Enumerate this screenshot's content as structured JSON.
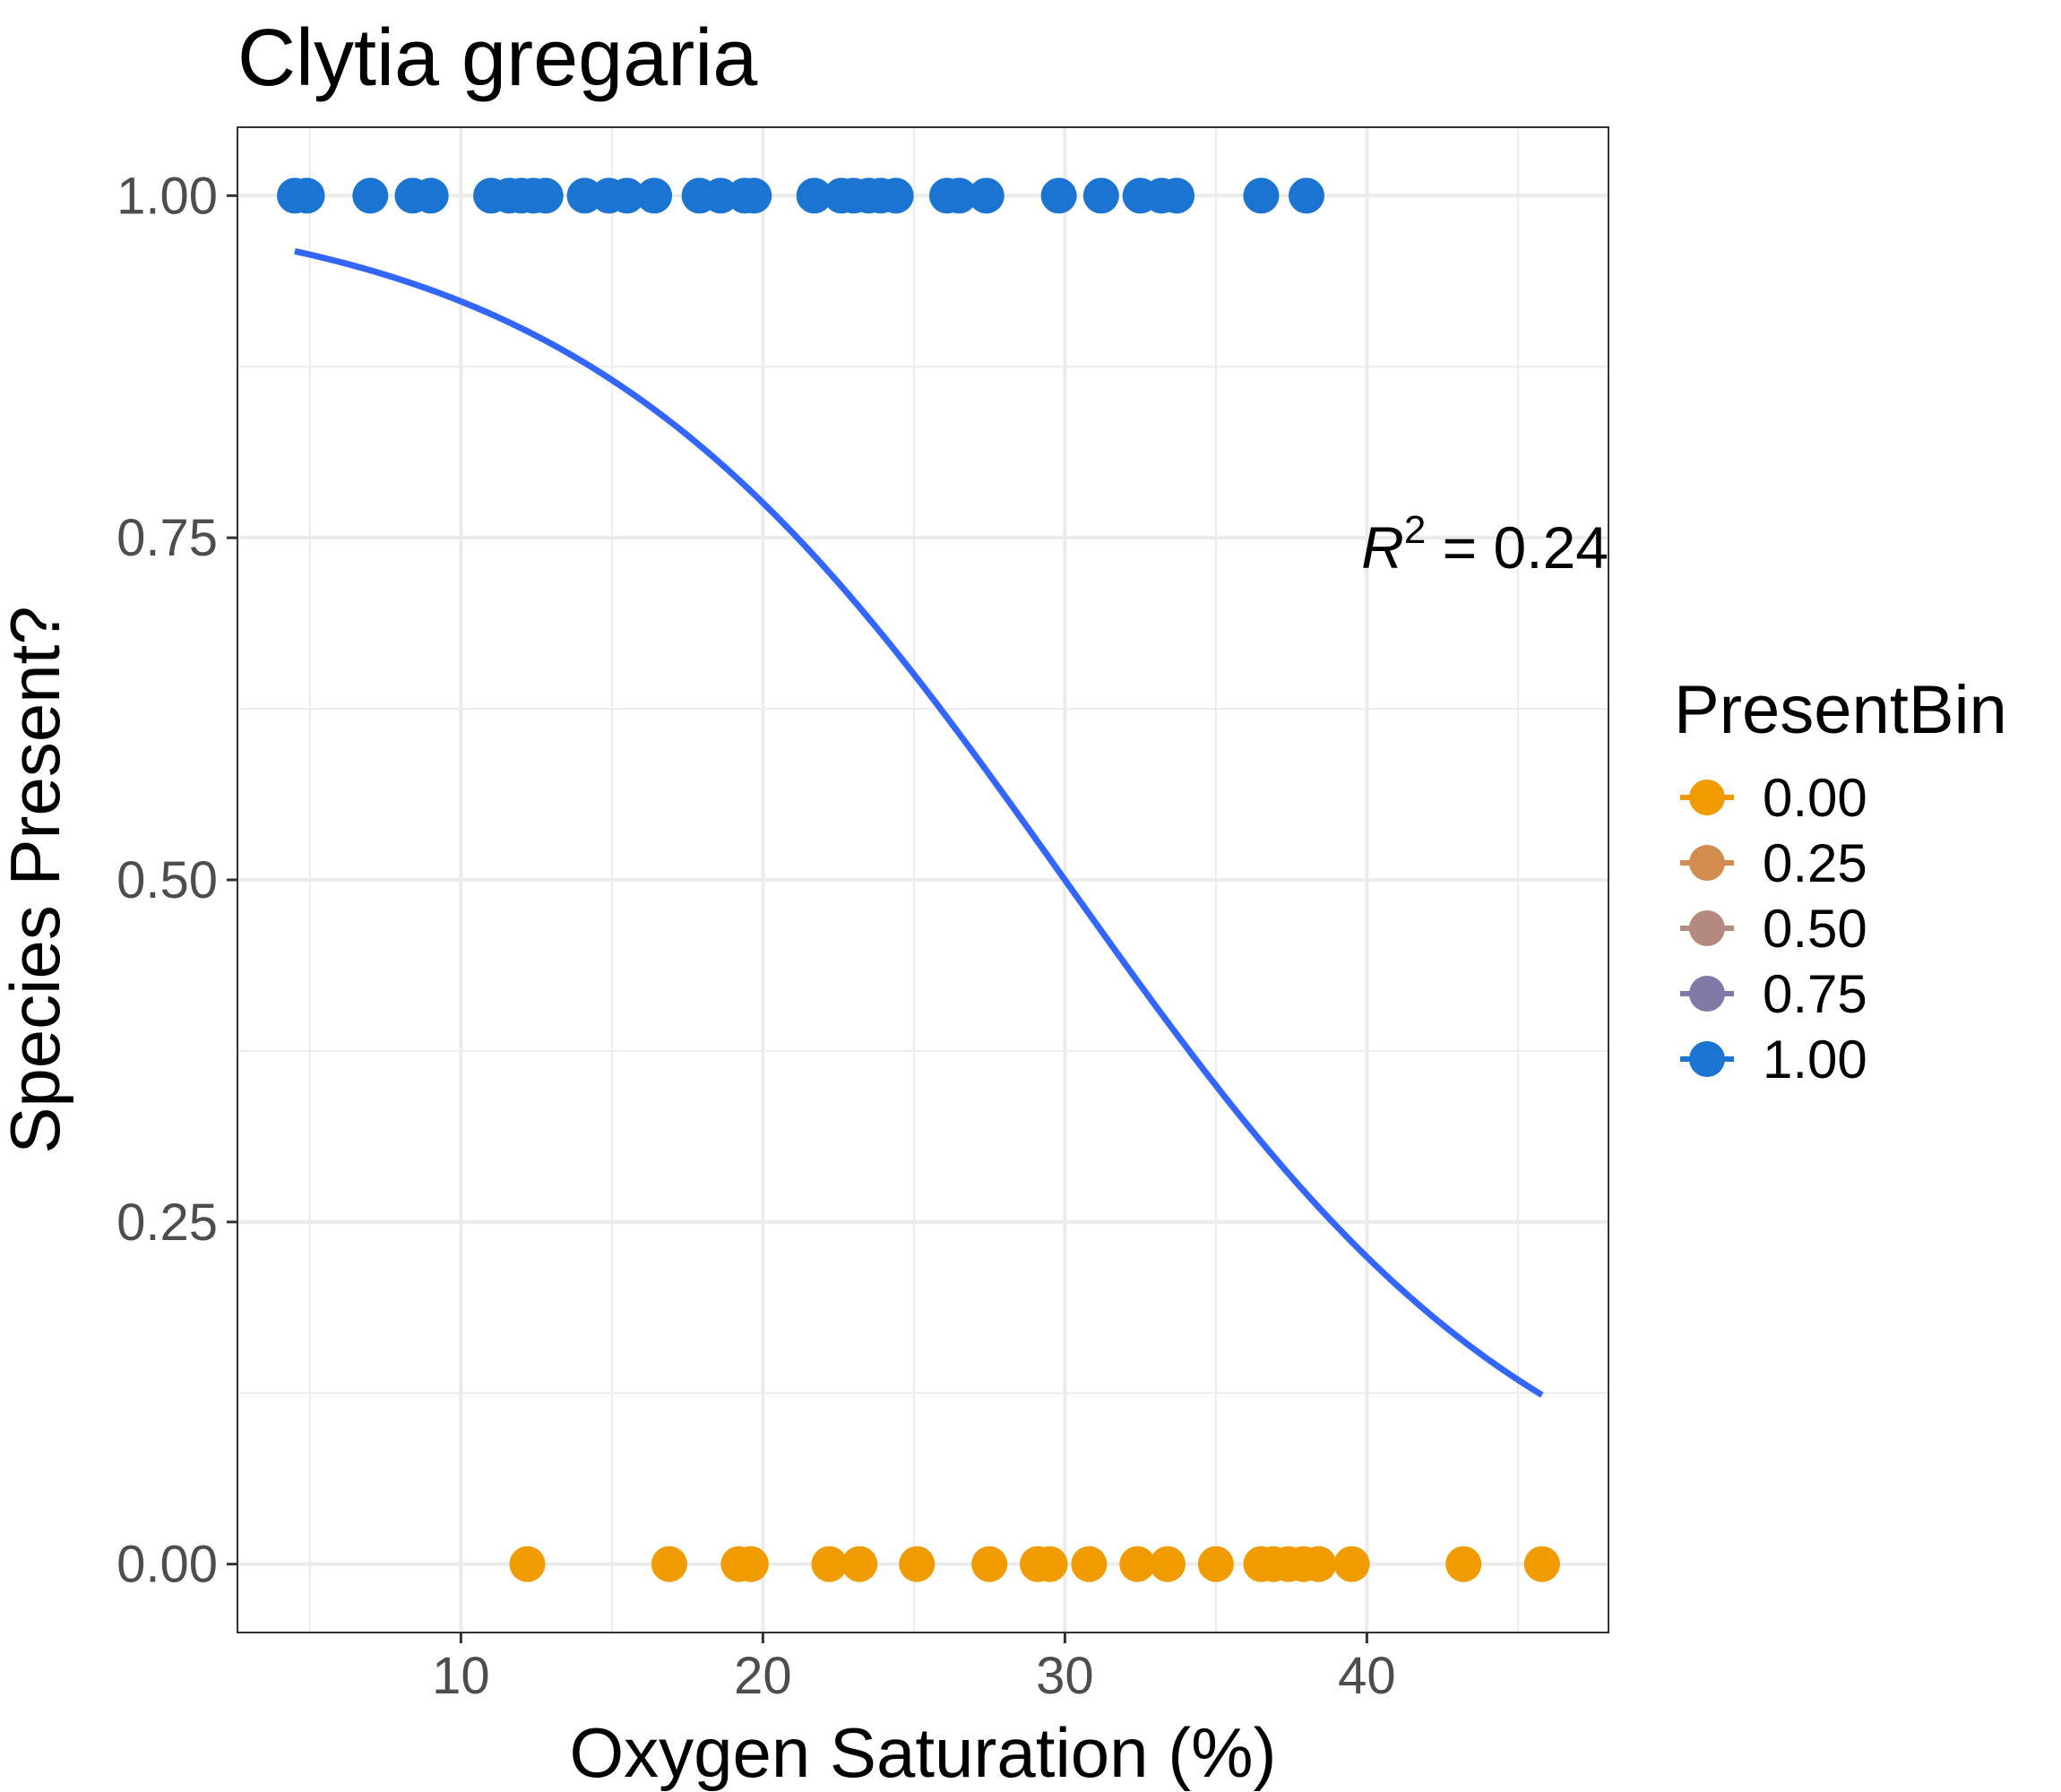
{
  "chart_data": {
    "type": "scatter",
    "title": "Clytia gregaria",
    "xlabel": "Oxygen Saturation (%)",
    "ylabel": "Species Present?",
    "xlim": [
      2.6,
      48.0
    ],
    "ylim": [
      -0.05,
      1.05
    ],
    "x_ticks": [
      10,
      20,
      30,
      40
    ],
    "x_tick_labels": [
      "10",
      "20",
      "30",
      "40"
    ],
    "y_ticks": [
      0,
      0.25,
      0.5,
      0.75,
      1.0
    ],
    "y_tick_labels": [
      "0.00",
      "0.25",
      "0.50",
      "0.75",
      "1.00"
    ],
    "grid": true,
    "legend": {
      "title": "PresentBin",
      "placement": "right",
      "entries": [
        {
          "label": "0.00",
          "color": "#F09B00"
        },
        {
          "label": "0.25",
          "color": "#D28C50"
        },
        {
          "label": "0.50",
          "color": "#B58A7E"
        },
        {
          "label": "0.75",
          "color": "#8179A8"
        },
        {
          "label": "1.00",
          "color": "#1B74D2"
        }
      ]
    },
    "annotation": {
      "symbol": "R",
      "superscript": "2",
      "text": " = 0.24"
    },
    "series": [
      {
        "presentbin": 1.0,
        "color": "#1B74D2",
        "points": [
          {
            "x": 4.5,
            "y": 1
          },
          {
            "x": 4.9,
            "y": 1
          },
          {
            "x": 7.0,
            "y": 1
          },
          {
            "x": 8.4,
            "y": 1
          },
          {
            "x": 9.0,
            "y": 1
          },
          {
            "x": 11.0,
            "y": 1
          },
          {
            "x": 11.6,
            "y": 1
          },
          {
            "x": 12.0,
            "y": 1
          },
          {
            "x": 12.4,
            "y": 1
          },
          {
            "x": 12.8,
            "y": 1
          },
          {
            "x": 14.1,
            "y": 1
          },
          {
            "x": 14.9,
            "y": 1
          },
          {
            "x": 15.5,
            "y": 1
          },
          {
            "x": 16.4,
            "y": 1
          },
          {
            "x": 17.9,
            "y": 1
          },
          {
            "x": 18.6,
            "y": 1
          },
          {
            "x": 19.4,
            "y": 1
          },
          {
            "x": 19.7,
            "y": 1
          },
          {
            "x": 21.7,
            "y": 1
          },
          {
            "x": 22.6,
            "y": 1
          },
          {
            "x": 23.0,
            "y": 1
          },
          {
            "x": 23.5,
            "y": 1
          },
          {
            "x": 23.9,
            "y": 1
          },
          {
            "x": 24.4,
            "y": 1
          },
          {
            "x": 26.1,
            "y": 1
          },
          {
            "x": 26.5,
            "y": 1
          },
          {
            "x": 27.4,
            "y": 1
          },
          {
            "x": 29.8,
            "y": 1
          },
          {
            "x": 31.2,
            "y": 1
          },
          {
            "x": 32.5,
            "y": 1
          },
          {
            "x": 33.2,
            "y": 1
          },
          {
            "x": 33.7,
            "y": 1
          },
          {
            "x": 36.5,
            "y": 1
          },
          {
            "x": 38.0,
            "y": 1
          }
        ]
      },
      {
        "presentbin": 0.0,
        "color": "#F09B00",
        "points": [
          {
            "x": 12.2,
            "y": 0
          },
          {
            "x": 16.9,
            "y": 0
          },
          {
            "x": 19.2,
            "y": 0
          },
          {
            "x": 19.6,
            "y": 0
          },
          {
            "x": 22.2,
            "y": 0
          },
          {
            "x": 23.2,
            "y": 0
          },
          {
            "x": 25.1,
            "y": 0
          },
          {
            "x": 27.5,
            "y": 0
          },
          {
            "x": 29.1,
            "y": 0
          },
          {
            "x": 29.5,
            "y": 0
          },
          {
            "x": 30.8,
            "y": 0
          },
          {
            "x": 32.4,
            "y": 0
          },
          {
            "x": 33.4,
            "y": 0
          },
          {
            "x": 35.0,
            "y": 0
          },
          {
            "x": 36.5,
            "y": 0
          },
          {
            "x": 36.9,
            "y": 0
          },
          {
            "x": 37.4,
            "y": 0
          },
          {
            "x": 37.9,
            "y": 0
          },
          {
            "x": 38.4,
            "y": 0
          },
          {
            "x": 39.5,
            "y": 0
          },
          {
            "x": 43.2,
            "y": 0
          },
          {
            "x": 45.8,
            "y": 0
          }
        ]
      }
    ],
    "fit_curve": {
      "type": "logistic",
      "color": "#3366FF",
      "x_range": [
        4.5,
        45.8
      ],
      "intercept": 3.72,
      "slope": -0.124
    }
  }
}
